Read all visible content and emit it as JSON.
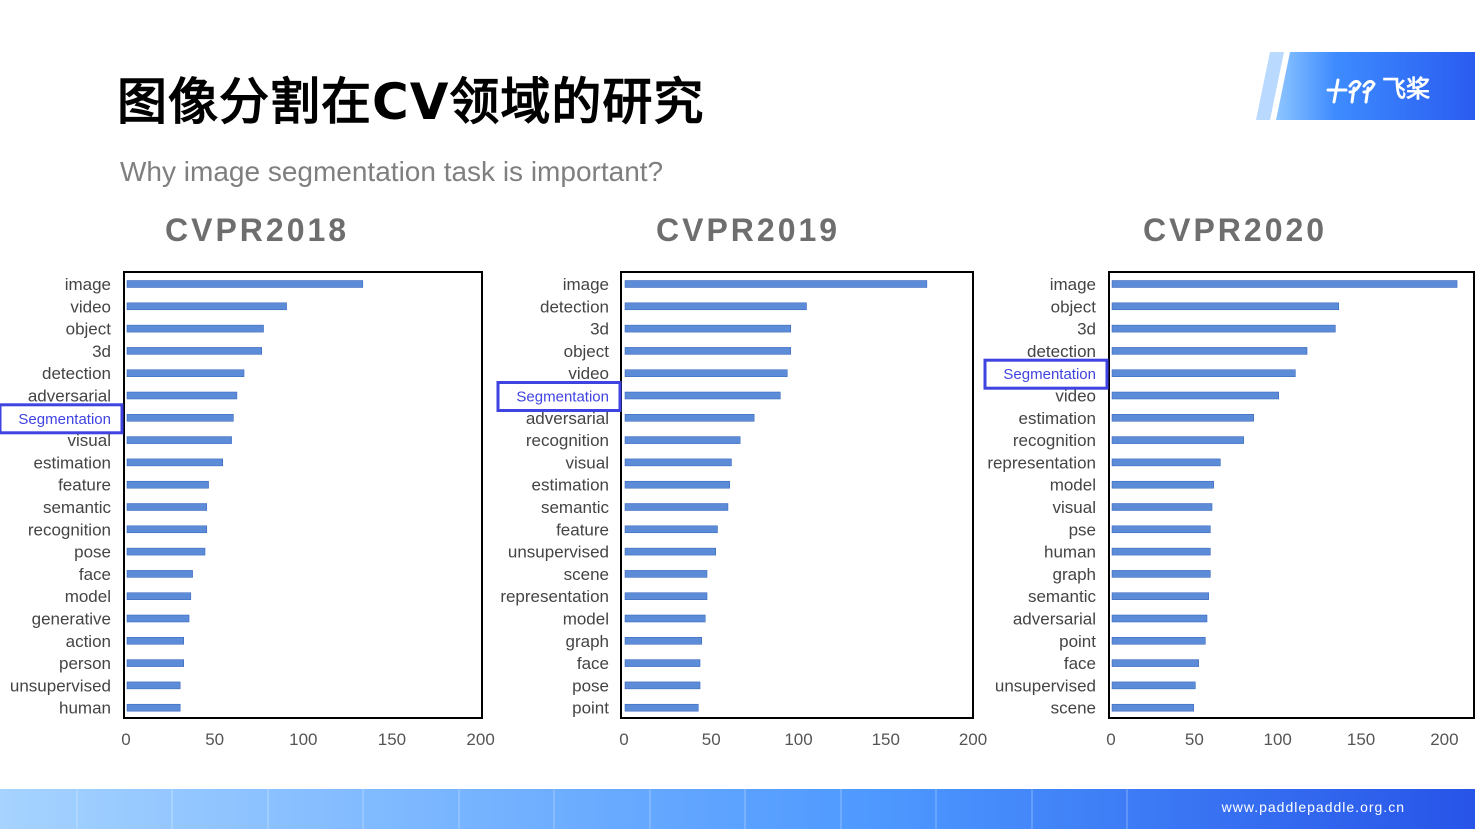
{
  "slide": {
    "title": "图像分割在CV领域的研究",
    "subtitle": "Why image segmentation task is important?",
    "logo_text": "飞桨",
    "footer_url": "www.paddlepaddle.org.cn",
    "colors": {
      "bar": "#4a7fd4",
      "highlight": "#3f43e0",
      "title": "#000000",
      "chart_title": "#6e6e6e"
    }
  },
  "chart_data": [
    {
      "type": "bar",
      "orientation": "horizontal",
      "title": "CVPR2018",
      "categories": [
        "image",
        "video",
        "object",
        "3d",
        "detection",
        "adversarial",
        "Segmentation",
        "visual",
        "estimation",
        "feature",
        "semantic",
        "recognition",
        "pose",
        "face",
        "model",
        "generative",
        "action",
        "person",
        "unsupervised",
        "human"
      ],
      "values": [
        133,
        90,
        77,
        76,
        66,
        62,
        60,
        59,
        54,
        46,
        45,
        45,
        44,
        37,
        36,
        35,
        32,
        32,
        30,
        30
      ],
      "highlight": "Segmentation",
      "xlim": [
        0,
        200
      ],
      "xticks": [
        0,
        50,
        100,
        150,
        200
      ],
      "grid": false
    },
    {
      "type": "bar",
      "orientation": "horizontal",
      "title": "CVPR2019",
      "categories": [
        "image",
        "detection",
        "3d",
        "object",
        "video",
        "Segmentation",
        "adversarial",
        "recognition",
        "visual",
        "estimation",
        "semantic",
        "feature",
        "unsupervised",
        "scene",
        "representation",
        "model",
        "graph",
        "face",
        "pose",
        "point"
      ],
      "values": [
        173,
        104,
        95,
        95,
        93,
        89,
        74,
        66,
        61,
        60,
        59,
        53,
        52,
        47,
        47,
        46,
        44,
        43,
        43,
        42
      ],
      "highlight": "Segmentation",
      "xlim": [
        0,
        200
      ],
      "xticks": [
        0,
        50,
        100,
        150,
        200
      ],
      "grid": false
    },
    {
      "type": "bar",
      "orientation": "horizontal",
      "title": "CVPR2020",
      "categories": [
        "image",
        "object",
        "3d",
        "detection",
        "Segmentation",
        "video",
        "estimation",
        "recognition",
        "representation",
        "model",
        "visual",
        "pse",
        "human",
        "graph",
        "semantic",
        "adversarial",
        "point",
        "face",
        "unsupervised",
        "scene"
      ],
      "values": [
        207,
        136,
        134,
        117,
        110,
        100,
        85,
        79,
        65,
        61,
        60,
        59,
        59,
        59,
        58,
        57,
        56,
        52,
        50,
        49
      ],
      "highlight": "Segmentation",
      "xlim": [
        0,
        200
      ],
      "xticks": [
        0,
        50,
        100,
        150,
        200
      ],
      "grid": false
    }
  ]
}
